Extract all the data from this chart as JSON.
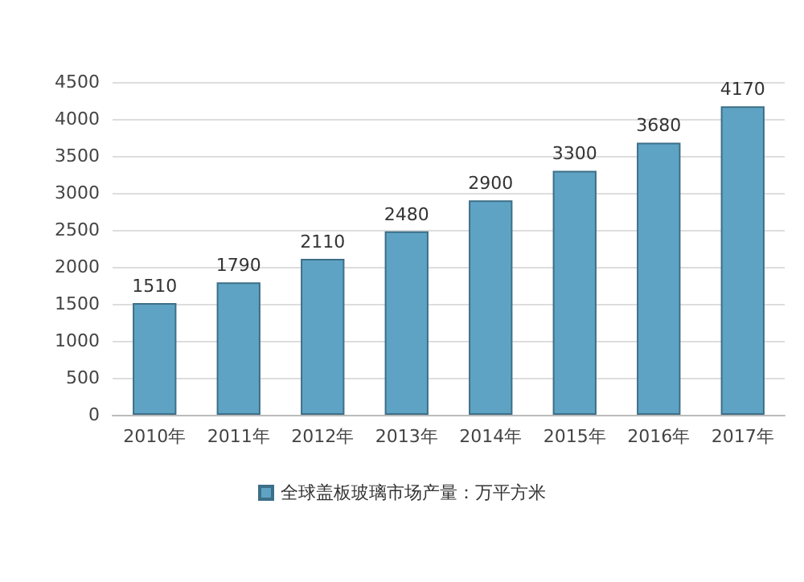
{
  "chart_data": {
    "type": "bar",
    "categories": [
      "2010年",
      "2011年",
      "2012年",
      "2013年",
      "2014年",
      "2015年",
      "2016年",
      "2017年"
    ],
    "series": [
      {
        "name": "全球盖板玻璃市场产量：万平方米",
        "color": "#5fa3c4",
        "values": [
          1510,
          1790,
          2110,
          2480,
          2900,
          3300,
          3680,
          4170
        ]
      }
    ],
    "ylim": [
      0,
      4500
    ],
    "yticks": [
      0,
      500,
      1000,
      1500,
      2000,
      2500,
      3000,
      3500,
      4000,
      4500
    ],
    "grid": "y",
    "legend": "bottom",
    "data_labels": true
  }
}
